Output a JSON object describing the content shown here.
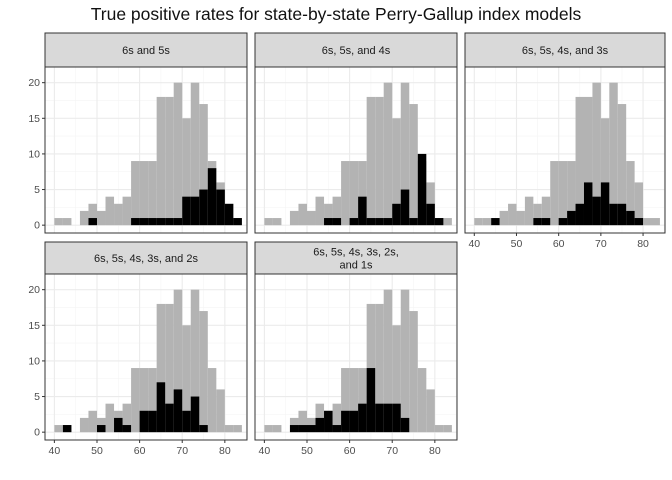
{
  "chart_data": {
    "type": "bar",
    "title": "True positive rates for state-by-state Perry-Gallup index models",
    "xlabel": "",
    "ylabel": "",
    "y_ticks": [
      "0",
      "5",
      "10",
      "15",
      "20"
    ],
    "x_ticks": [
      "40",
      "50",
      "60",
      "70",
      "80"
    ],
    "ylim": [
      0,
      22
    ],
    "grid": true,
    "legend": "none",
    "bins": [
      40,
      42,
      44,
      46,
      48,
      50,
      52,
      54,
      56,
      58,
      60,
      62,
      64,
      66,
      68,
      70,
      72,
      74,
      76,
      78,
      80,
      82
    ],
    "bin_width": 2,
    "panels": [
      {
        "strip": "6s and 5s",
        "all": [
          1,
          1,
          0,
          2,
          3,
          2,
          4,
          3,
          4,
          9,
          9,
          9,
          18,
          18,
          20,
          15,
          20,
          17,
          9,
          6,
          1,
          1
        ],
        "positive": [
          0,
          0,
          0,
          0,
          1,
          0,
          0,
          0,
          0,
          1,
          1,
          1,
          1,
          1,
          1,
          4,
          4,
          5,
          8,
          5,
          3,
          1
        ]
      },
      {
        "strip": "6s, 5s, and 4s",
        "all": [
          1,
          1,
          0,
          2,
          3,
          2,
          4,
          3,
          4,
          9,
          9,
          9,
          18,
          18,
          20,
          15,
          20,
          17,
          9,
          6,
          1,
          1
        ],
        "positive": [
          0,
          0,
          0,
          0,
          0,
          0,
          0,
          1,
          1,
          0,
          1,
          4,
          1,
          1,
          1,
          3,
          5,
          1,
          10,
          3,
          1,
          0
        ]
      },
      {
        "strip": "6s, 5s, 4s, and 3s",
        "all": [
          1,
          1,
          0,
          2,
          3,
          2,
          4,
          3,
          4,
          9,
          9,
          9,
          18,
          18,
          20,
          15,
          20,
          17,
          9,
          6,
          1,
          1
        ],
        "positive": [
          0,
          0,
          1,
          0,
          0,
          0,
          0,
          1,
          1,
          0,
          1,
          2,
          3,
          6,
          4,
          6,
          3,
          3,
          2,
          1,
          0,
          0
        ]
      },
      {
        "strip": "6s, 5s, 4s, 3s, and 2s",
        "all": [
          1,
          1,
          0,
          2,
          3,
          2,
          4,
          3,
          4,
          9,
          9,
          9,
          18,
          18,
          20,
          15,
          20,
          17,
          9,
          6,
          1,
          1
        ],
        "positive": [
          0,
          1,
          0,
          0,
          0,
          1,
          0,
          2,
          1,
          0,
          3,
          3,
          7,
          4,
          6,
          3,
          5,
          1,
          0,
          0,
          0,
          0
        ]
      },
      {
        "strip": "6s, 5s, 4s, 3s, 2s, and 1s",
        "all": [
          1,
          1,
          0,
          2,
          3,
          2,
          4,
          3,
          4,
          9,
          9,
          9,
          18,
          18,
          20,
          15,
          20,
          17,
          9,
          6,
          1,
          1
        ],
        "positive": [
          0,
          0,
          0,
          1,
          1,
          1,
          2,
          3,
          1,
          3,
          3,
          4,
          9,
          4,
          4,
          4,
          2,
          0,
          0,
          0,
          0,
          0
        ]
      }
    ],
    "colors": {
      "all": "#b3b3b3",
      "positive": "#000000",
      "strip_fill": "#d9d9d9",
      "strip_border": "#333333",
      "grid_major": "#ebebeb",
      "grid_minor": "#f5f5f5",
      "panel_border": "#333333",
      "tick_text": "#4d4d4d"
    }
  }
}
